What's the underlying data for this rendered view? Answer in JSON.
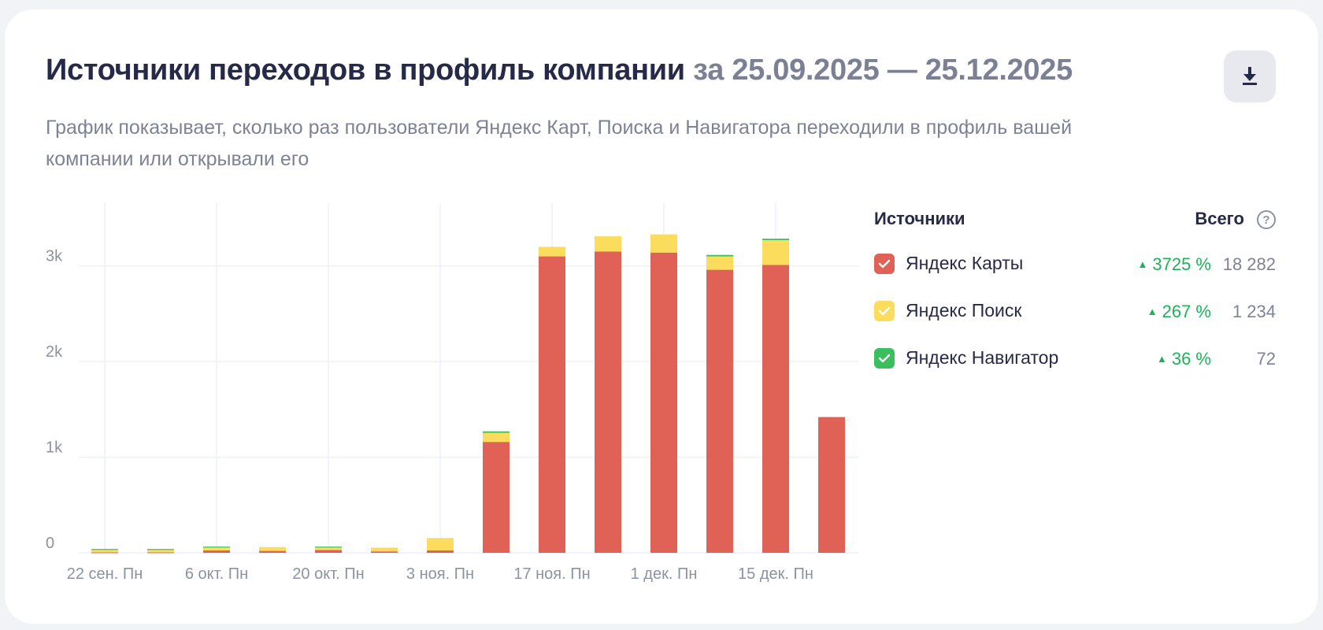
{
  "header": {
    "title": "Источники переходов в профиль компании",
    "period": "за 25.09.2025 — 25.12.2025",
    "subtitle": "График показывает, сколько раз пользователи Яндекс Карт, Поиска и Навигатора переходили в профиль вашей компании или открывали его"
  },
  "legend": {
    "sources_label": "Источники",
    "total_label": "Всего",
    "help_symbol": "?",
    "items": [
      {
        "label": "Яндекс Карты",
        "change": "3725 %",
        "total": "18 282",
        "color": "#e06257"
      },
      {
        "label": "Яндекс Поиск",
        "change": "267 %",
        "total": "1 234",
        "color": "#fcdc5d"
      },
      {
        "label": "Яндекс Навигатор",
        "change": "36 %",
        "total": "72",
        "color": "#3bbf5e"
      }
    ]
  },
  "chart_data": {
    "type": "bar",
    "stacked": true,
    "categories": [
      "22 сен. Пн",
      "29 сен. Пн",
      "6 окт. Пн",
      "13 окт. Пн",
      "20 окт. Пн",
      "27 окт. Пн",
      "3 ноя. Пн",
      "10 ноя. Пн",
      "17 ноя. Пн",
      "24 ноя. Пн",
      "1 дек. Пн",
      "8 дек. Пн",
      "15 дек. Пн",
      "22 дек. Пн"
    ],
    "tick_labels": [
      "22 сен. Пн",
      "6 окт. Пн",
      "20 окт. Пн",
      "3 ноя. Пн",
      "17 ноя. Пн",
      "1 дек. Пн",
      "15 дек. Пн"
    ],
    "yticks": [
      {
        "value": 0,
        "label": "0"
      },
      {
        "value": 1000,
        "label": "1k"
      },
      {
        "value": 2000,
        "label": "2k"
      },
      {
        "value": 3000,
        "label": "3k"
      }
    ],
    "ylim": [
      0,
      3500
    ],
    "grid": true,
    "series": [
      {
        "name": "Яндекс Карты",
        "color": "#e06257",
        "values": [
          5,
          5,
          25,
          20,
          30,
          15,
          25,
          1160,
          3100,
          3150,
          3140,
          2960,
          3010,
          1420
        ]
      },
      {
        "name": "Яндекс Поиск",
        "color": "#fcdc5d",
        "values": [
          25,
          25,
          30,
          40,
          25,
          40,
          130,
          95,
          100,
          160,
          190,
          140,
          260,
          0
        ]
      },
      {
        "name": "Яндекс Навигатор",
        "color": "#3bbf5e",
        "values": [
          10,
          10,
          10,
          0,
          10,
          0,
          0,
          15,
          0,
          0,
          0,
          15,
          15,
          0
        ]
      }
    ]
  }
}
